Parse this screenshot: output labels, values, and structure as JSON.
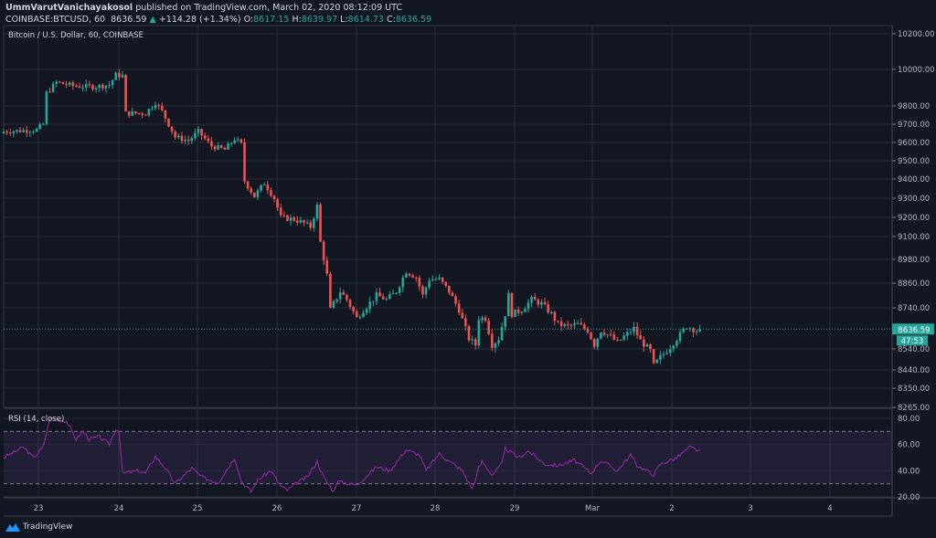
{
  "header": {
    "author": "UmmVarutVanichayakosol",
    "published": "published on TradingView.com, March 02, 2020 08:12:09 UTC",
    "symbol": "COINBASE:BTCUSD, 60",
    "last": "8636.59",
    "change": "+114.28 (+1.34%)",
    "o_label": "O:",
    "o": "8617.15",
    "h_label": "H:",
    "h": "8639.97",
    "l_label": "L:",
    "l": "8614.73",
    "c_label": "C:",
    "c": "8636.59"
  },
  "pane_title": "Bitcoin / U.S. Dollar, 60, COINBASE",
  "rsi_title": "RSI (14, close)",
  "last_price_label": "8636.59",
  "countdown": "47:53",
  "footer": {
    "brand": "TradingView"
  },
  "colors": {
    "up": "#26a69a",
    "down": "#ef5350",
    "rsi": "#9c27b0",
    "background": "#131722",
    "grid": "#2a2e39"
  },
  "chart_data": [
    {
      "type": "candlestick",
      "title": "Bitcoin / U.S. Dollar, 60, COINBASE",
      "interval_hours": 1,
      "last_price": 8636.59,
      "price_ticks": [
        10200,
        10000,
        9800,
        9700,
        9600,
        9500,
        9400,
        9300,
        9200,
        9100,
        8980,
        8860,
        8740,
        8540,
        8440,
        8350,
        8265
      ],
      "price_tick_labels": [
        "10200.00",
        "10000.00",
        "9800.00",
        "9700.00",
        "9600.00",
        "9500.00",
        "9400.00",
        "9300.00",
        "9200.00",
        "9100.00",
        "8980.00",
        "8860.00",
        "8740.00",
        "8540.00",
        "8440.00",
        "8350.00",
        "8265.00"
      ],
      "x_tick_labels": [
        "23",
        "24",
        "25",
        "26",
        "27",
        "28",
        "29",
        "Mar",
        "2",
        "3",
        "4"
      ],
      "close_waypoints": [
        [
          0,
          9660
        ],
        [
          10,
          9670
        ],
        [
          12,
          9700
        ],
        [
          13,
          9870
        ],
        [
          16,
          9930
        ],
        [
          21,
          9910
        ],
        [
          27,
          9905
        ],
        [
          32,
          9915
        ],
        [
          34,
          9970
        ],
        [
          36,
          9965
        ],
        [
          37,
          9760
        ],
        [
          43,
          9760
        ],
        [
          46,
          9820
        ],
        [
          48,
          9770
        ],
        [
          52,
          9630
        ],
        [
          56,
          9610
        ],
        [
          59,
          9660
        ],
        [
          63,
          9580
        ],
        [
          67,
          9560
        ],
        [
          70,
          9620
        ],
        [
          72,
          9590
        ],
        [
          73,
          9390
        ],
        [
          76,
          9310
        ],
        [
          79,
          9380
        ],
        [
          82,
          9300
        ],
        [
          84,
          9200
        ],
        [
          88,
          9190
        ],
        [
          91,
          9170
        ],
        [
          93,
          9150
        ],
        [
          95,
          9260
        ],
        [
          96,
          9070
        ],
        [
          98,
          8900
        ],
        [
          99,
          8730
        ],
        [
          102,
          8820
        ],
        [
          104,
          8780
        ],
        [
          107,
          8690
        ],
        [
          109,
          8730
        ],
        [
          113,
          8800
        ],
        [
          116,
          8780
        ],
        [
          119,
          8820
        ],
        [
          122,
          8920
        ],
        [
          125,
          8890
        ],
        [
          127,
          8800
        ],
        [
          129,
          8880
        ],
        [
          132,
          8880
        ],
        [
          135,
          8820
        ],
        [
          138,
          8730
        ],
        [
          141,
          8590
        ],
        [
          143,
          8560
        ],
        [
          144,
          8690
        ],
        [
          146,
          8690
        ],
        [
          148,
          8560
        ],
        [
          150,
          8590
        ],
        [
          152,
          8710
        ],
        [
          153,
          8800
        ],
        [
          154,
          8710
        ],
        [
          157,
          8730
        ],
        [
          160,
          8780
        ],
        [
          163,
          8760
        ],
        [
          166,
          8710
        ],
        [
          168,
          8660
        ],
        [
          171,
          8650
        ],
        [
          174,
          8660
        ],
        [
          177,
          8630
        ],
        [
          179,
          8560
        ],
        [
          181,
          8630
        ],
        [
          184,
          8600
        ],
        [
          186,
          8570
        ],
        [
          188,
          8600
        ],
        [
          191,
          8640
        ],
        [
          193,
          8580
        ],
        [
          196,
          8530
        ],
        [
          197,
          8460
        ],
        [
          199,
          8500
        ],
        [
          202,
          8550
        ],
        [
          204,
          8590
        ],
        [
          207,
          8650
        ],
        [
          210,
          8630
        ],
        [
          211,
          8636.59
        ]
      ]
    },
    {
      "type": "line",
      "title": "RSI (14, close)",
      "ylim": [
        20,
        80
      ],
      "y_ticks": [
        80,
        60,
        40,
        20
      ],
      "y_tick_labels": [
        "80.00",
        "60.00",
        "40.00",
        "20.00"
      ],
      "band": [
        30,
        70
      ],
      "waypoints": [
        [
          0,
          50
        ],
        [
          6,
          58
        ],
        [
          9,
          50
        ],
        [
          12,
          58
        ],
        [
          14,
          80
        ],
        [
          19,
          78
        ],
        [
          22,
          64
        ],
        [
          24,
          70
        ],
        [
          26,
          64
        ],
        [
          29,
          66
        ],
        [
          32,
          60
        ],
        [
          34,
          72
        ],
        [
          35,
          70
        ],
        [
          36,
          38
        ],
        [
          41,
          40
        ],
        [
          43,
          38
        ],
        [
          46,
          51
        ],
        [
          49,
          42
        ],
        [
          52,
          30
        ],
        [
          57,
          42
        ],
        [
          60,
          35
        ],
        [
          65,
          31
        ],
        [
          70,
          50
        ],
        [
          72,
          32
        ],
        [
          75,
          24
        ],
        [
          77,
          33
        ],
        [
          81,
          40
        ],
        [
          84,
          28
        ],
        [
          86,
          25
        ],
        [
          89,
          31
        ],
        [
          92,
          35
        ],
        [
          95,
          47
        ],
        [
          97,
          35
        ],
        [
          100,
          24
        ],
        [
          101,
          32
        ],
        [
          107,
          29
        ],
        [
          113,
          43
        ],
        [
          117,
          40
        ],
        [
          122,
          56
        ],
        [
          126,
          52
        ],
        [
          128,
          40
        ],
        [
          132,
          53
        ],
        [
          139,
          40
        ],
        [
          142,
          26
        ],
        [
          144,
          42
        ],
        [
          145,
          47
        ],
        [
          148,
          37
        ],
        [
          151,
          45
        ],
        [
          152,
          57
        ],
        [
          156,
          50
        ],
        [
          159,
          55
        ],
        [
          164,
          45
        ],
        [
          168,
          44
        ],
        [
          173,
          48
        ],
        [
          178,
          38
        ],
        [
          181,
          48
        ],
        [
          186,
          40
        ],
        [
          190,
          52
        ],
        [
          192,
          44
        ],
        [
          197,
          37
        ],
        [
          199,
          45
        ],
        [
          204,
          50
        ],
        [
          208,
          58
        ],
        [
          211,
          55
        ]
      ]
    }
  ]
}
